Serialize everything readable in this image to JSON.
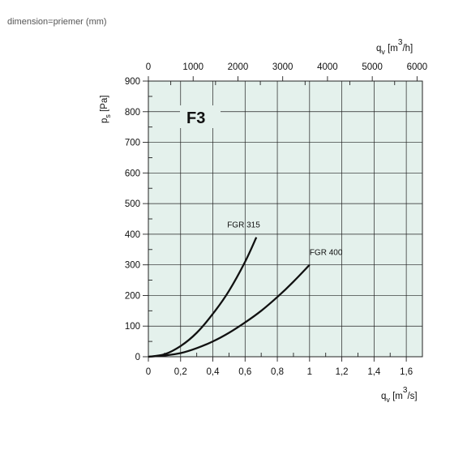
{
  "caption": "dimension=priemer (mm)",
  "chart_data": {
    "type": "line",
    "panel_label": "F3",
    "ylabel": {
      "base": "p",
      "sub": "s",
      "unit": "[Pa]"
    },
    "xlabel_bottom": {
      "base": "q",
      "sub": "v",
      "unit_pre": "[m",
      "unit_sup": "3",
      "unit_post": "/s]"
    },
    "xlabel_top": {
      "base": "q",
      "sub": "v",
      "unit_pre": "[m",
      "unit_sup": "3",
      "unit_post": "/h]"
    },
    "x_bottom_ticks": [
      "0",
      "0,2",
      "0,4",
      "0,6",
      "0,8",
      "1",
      "1,2",
      "1,4",
      "1,6"
    ],
    "x_bottom_tick_values": [
      0,
      0.2,
      0.4,
      0.6,
      0.8,
      1.0,
      1.2,
      1.4,
      1.6
    ],
    "x_top_ticks": [
      "0",
      "1000",
      "2000",
      "3000",
      "4000",
      "5000",
      "6000"
    ],
    "x_top_tick_values": [
      0,
      1000,
      2000,
      3000,
      4000,
      5000,
      6000
    ],
    "y_ticks": [
      "0",
      "100",
      "200",
      "300",
      "400",
      "500",
      "600",
      "700",
      "800",
      "900"
    ],
    "y_tick_values": [
      0,
      100,
      200,
      300,
      400,
      500,
      600,
      700,
      800,
      900
    ],
    "xlim": [
      0,
      1.7
    ],
    "x_top_lim": [
      0,
      6120
    ],
    "ylim": [
      0,
      900
    ],
    "grid": true,
    "series": [
      {
        "name": "FGR 315",
        "x": [
          0,
          0.1,
          0.2,
          0.3,
          0.4,
          0.5,
          0.6,
          0.67
        ],
        "y": [
          0,
          8,
          35,
          78,
          140,
          215,
          310,
          390
        ]
      },
      {
        "name": "FGR 400",
        "x": [
          0,
          0.1,
          0.2,
          0.3,
          0.4,
          0.5,
          0.6,
          0.7,
          0.8,
          0.9,
          1.0
        ],
        "y": [
          0,
          4,
          12,
          28,
          50,
          78,
          112,
          150,
          195,
          245,
          300
        ]
      }
    ]
  }
}
